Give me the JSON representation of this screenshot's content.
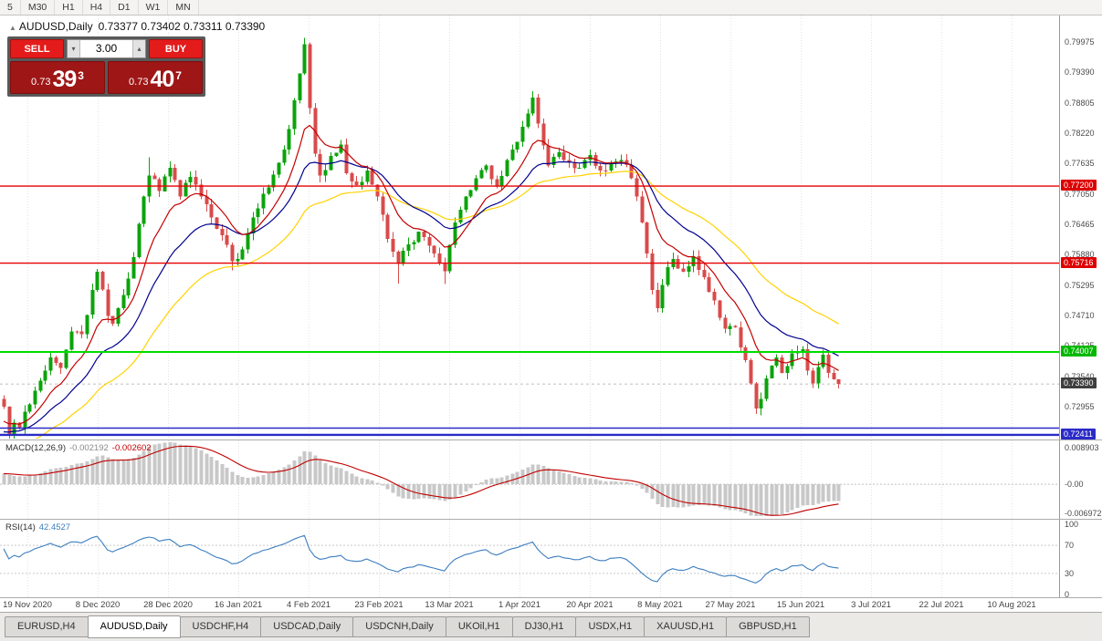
{
  "toolbar": {
    "timeframes": [
      "5",
      "M30",
      "H1",
      "H4",
      "D1",
      "W1",
      "MN"
    ]
  },
  "chart": {
    "symbol_line": {
      "symbol": "AUDUSD,Daily",
      "ohlc": "0.73377 0.73402 0.73311 0.73390"
    }
  },
  "icons": {
    "chart_marker": "▲",
    "volume_down": "▾",
    "volume_up": "▴"
  },
  "trade_panel": {
    "sell_label": "SELL",
    "buy_label": "BUY",
    "volume": "3.00",
    "bid": {
      "prefix": "0.73",
      "big": "39",
      "sup": "3"
    },
    "ask": {
      "prefix": "0.73",
      "big": "40",
      "sup": "7"
    }
  },
  "macd_label": {
    "name": "MACD(12,26,9)",
    "main": "-0.002192",
    "signal": "-0.002602"
  },
  "rsi_label": {
    "name": "RSI(14)",
    "value": "42.4527"
  },
  "price_axis": {
    "ticks": [
      "0.79975",
      "0.79390",
      "0.78805",
      "0.78220",
      "0.77635",
      "0.77050",
      "0.76465",
      "0.75880",
      "0.75295",
      "0.74710",
      "0.74125",
      "0.73540",
      "0.72955"
    ]
  },
  "dates": [
    "19 Nov 2020",
    "8 Dec 2020",
    "28 Dec 2020",
    "16 Jan 2021",
    "4 Feb 2021",
    "23 Feb 2021",
    "13 Mar 2021",
    "1 Apr 2021",
    "20 Apr 2021",
    "8 May 2021",
    "27 May 2021",
    "15 Jun 2021",
    "3 Jul 2021",
    "22 Jul 2021",
    "10 Aug 2021"
  ],
  "tabs": [
    {
      "label": "EURUSD,H4",
      "active": false
    },
    {
      "label": "AUDUSD,Daily",
      "active": true
    },
    {
      "label": "USDCHF,H4",
      "active": false
    },
    {
      "label": "USDCAD,Daily",
      "active": false
    },
    {
      "label": "USDCNH,Daily",
      "active": false
    },
    {
      "label": "UKOil,H1",
      "active": false
    },
    {
      "label": "DJ30,H1",
      "active": false
    },
    {
      "label": "USDX,H1",
      "active": false
    },
    {
      "label": "XAUUSD,H1",
      "active": false
    },
    {
      "label": "GBPUSD,H1",
      "active": false
    }
  ],
  "chart_data": {
    "type": "candlestick",
    "symbol": "AUDUSD",
    "timeframe": "Daily",
    "ohlc_current": {
      "open": 0.73377,
      "high": 0.73402,
      "low": 0.73311,
      "close": 0.7339
    },
    "bid": 0.73393,
    "ask": 0.73407,
    "price_max": 0.80484,
    "price_min": 0.72339,
    "bar_count": 162,
    "anchors": [
      [
        0,
        0.7295
      ],
      [
        1,
        0.724
      ],
      [
        2,
        0.7265
      ],
      [
        3,
        0.7255
      ],
      [
        5,
        0.73
      ],
      [
        7,
        0.7345
      ],
      [
        9,
        0.739
      ],
      [
        11,
        0.737
      ],
      [
        13,
        0.744
      ],
      [
        15,
        0.7435
      ],
      [
        17,
        0.752
      ],
      [
        18,
        0.7555
      ],
      [
        20,
        0.747
      ],
      [
        21,
        0.7455
      ],
      [
        23,
        0.751
      ],
      [
        25,
        0.7583
      ],
      [
        27,
        0.77
      ],
      [
        28,
        0.774
      ],
      [
        30,
        0.771
      ],
      [
        32,
        0.7755
      ],
      [
        34,
        0.77
      ],
      [
        36,
        0.7738
      ],
      [
        38,
        0.77
      ],
      [
        40,
        0.766
      ],
      [
        42,
        0.7625
      ],
      [
        44,
        0.7575
      ],
      [
        46,
        0.7598
      ],
      [
        48,
        0.766
      ],
      [
        50,
        0.7705
      ],
      [
        52,
        0.7742
      ],
      [
        54,
        0.779
      ],
      [
        55,
        0.783
      ],
      [
        56,
        0.7885
      ],
      [
        57,
        0.7937
      ],
      [
        58,
        0.7993
      ],
      [
        59,
        0.787
      ],
      [
        60,
        0.7782
      ],
      [
        61,
        0.774
      ],
      [
        63,
        0.7778
      ],
      [
        65,
        0.78
      ],
      [
        66,
        0.7745
      ],
      [
        68,
        0.7722
      ],
      [
        70,
        0.775
      ],
      [
        72,
        0.77
      ],
      [
        74,
        0.7618
      ],
      [
        76,
        0.757
      ],
      [
        78,
        0.7608
      ],
      [
        80,
        0.7632
      ],
      [
        82,
        0.7605
      ],
      [
        84,
        0.7572
      ],
      [
        85,
        0.7556
      ],
      [
        87,
        0.765
      ],
      [
        89,
        0.77
      ],
      [
        91,
        0.7735
      ],
      [
        93,
        0.776
      ],
      [
        95,
        0.772
      ],
      [
        97,
        0.777
      ],
      [
        99,
        0.7805
      ],
      [
        101,
        0.786
      ],
      [
        102,
        0.789
      ],
      [
        103,
        0.784
      ],
      [
        105,
        0.776
      ],
      [
        107,
        0.7785
      ],
      [
        109,
        0.7765
      ],
      [
        111,
        0.7755
      ],
      [
        113,
        0.778
      ],
      [
        115,
        0.775
      ],
      [
        117,
        0.7765
      ],
      [
        119,
        0.777
      ],
      [
        121,
        0.7735
      ],
      [
        122,
        0.77
      ],
      [
        123,
        0.765
      ],
      [
        124,
        0.759
      ],
      [
        125,
        0.752
      ],
      [
        126,
        0.7485
      ],
      [
        127,
        0.753
      ],
      [
        129,
        0.758
      ],
      [
        131,
        0.7555
      ],
      [
        133,
        0.7585
      ],
      [
        135,
        0.7545
      ],
      [
        137,
        0.75
      ],
      [
        139,
        0.7445
      ],
      [
        141,
        0.7448
      ],
      [
        143,
        0.7385
      ],
      [
        144,
        0.734
      ],
      [
        145,
        0.7292
      ],
      [
        146,
        0.731
      ],
      [
        147,
        0.735
      ],
      [
        149,
        0.739
      ],
      [
        150,
        0.736
      ],
      [
        152,
        0.7398
      ],
      [
        154,
        0.7406
      ],
      [
        155,
        0.7365
      ],
      [
        156,
        0.734
      ],
      [
        157,
        0.7372
      ],
      [
        158,
        0.7395
      ],
      [
        159,
        0.736
      ],
      [
        160,
        0.7348
      ],
      [
        161,
        0.7339
      ]
    ],
    "wick_overrides": [
      [
        1,
        "low",
        0.722
      ],
      [
        28,
        "high",
        0.7775
      ],
      [
        44,
        "low",
        0.7558
      ],
      [
        58,
        "high",
        0.8005
      ],
      [
        76,
        "low",
        0.7532
      ],
      [
        85,
        "low",
        0.7531
      ],
      [
        102,
        "high",
        0.79
      ],
      [
        126,
        "low",
        0.7477
      ],
      [
        145,
        "low",
        0.7288
      ],
      [
        154,
        "high",
        0.7412
      ]
    ],
    "prehistory": {
      "bars": 60,
      "start": 0.706,
      "end": 0.728
    },
    "colors": {
      "up": "#0BA30B",
      "down": "#D84B4B"
    },
    "moving_averages": [
      {
        "period": 40,
        "color": "#FFD200",
        "name": "slow-yellow"
      },
      {
        "period": 21,
        "color": "#000090",
        "name": "medium-blue"
      },
      {
        "period": 10,
        "color": "#C40000",
        "name": "fast-red"
      }
    ],
    "levels": [
      {
        "price": 0.772,
        "label": "0.77200",
        "color": "#E60000",
        "badge_color": "#DD0000",
        "width": 1.4,
        "badge": true
      },
      {
        "price": 0.75716,
        "label": "0.75716",
        "color": "#E60000",
        "badge_color": "#DD0000",
        "width": 1.4,
        "badge": true
      },
      {
        "price": 0.74007,
        "label": "0.74007",
        "color": "#00DC00",
        "badge_color": "#00B800",
        "width": 2,
        "badge": true
      },
      {
        "price": 0.7254,
        "label": "",
        "color": "#2B2BC8",
        "badge_color": "#2B2BC8",
        "width": 1.6,
        "badge": false
      },
      {
        "price": 0.72411,
        "label": "0.72411",
        "color": "#2B2BC8",
        "badge_color": "#2B2BC8",
        "width": 2.4,
        "badge": true
      }
    ],
    "current_price_marker": {
      "price": 0.7339,
      "label": "0.73390",
      "color": "#3F3F3F"
    },
    "macd": {
      "fast": 12,
      "slow": 26,
      "signal_period": 9,
      "value_main": -0.002192,
      "value_signal": -0.002602,
      "range_top": 0.01067,
      "range_bottom": -0.00817,
      "histogram_color": "#C8C8C8",
      "signal_color": "#C00000",
      "axis": [
        {
          "label": "0.008903",
          "value": 0.008903
        },
        {
          "label": "-0.00",
          "value": 0
        },
        {
          "label": "-0.006972",
          "value": -0.006972
        }
      ]
    },
    "rsi": {
      "period": 14,
      "value": 42.4527,
      "color": "#3C7EBF",
      "overbought": 70,
      "oversold": 30,
      "axis": [
        {
          "label": "100",
          "value": 100
        },
        {
          "label": "70",
          "value": 70
        },
        {
          "label": "30",
          "value": 30
        },
        {
          "label": "0",
          "value": 0
        }
      ]
    }
  }
}
